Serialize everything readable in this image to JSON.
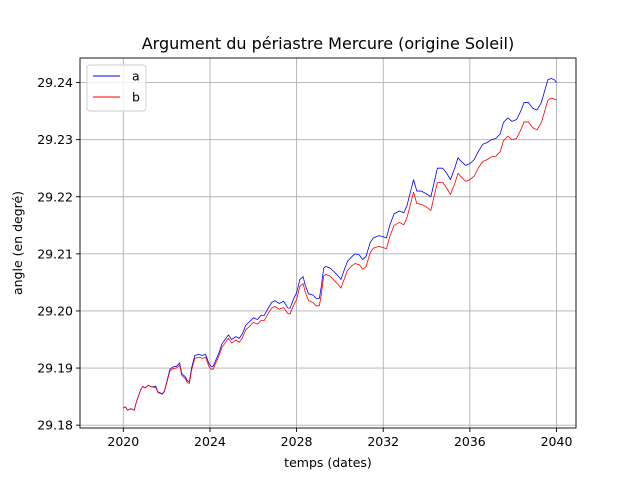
{
  "chart_data": {
    "type": "line",
    "title": "Argument du périastre Mercure (origine Soleil)",
    "xlabel": "temps (dates)",
    "ylabel": "angle (en degré)",
    "xlim": [
      2018.0,
      2040.9
    ],
    "ylim": [
      29.1795,
      29.2443
    ],
    "xticks": [
      2020,
      2024,
      2028,
      2032,
      2036,
      2040
    ],
    "yticks": [
      29.18,
      29.19,
      29.2,
      29.21,
      29.22,
      29.23,
      29.24
    ],
    "ytick_labels": [
      "29.18",
      "29.19",
      "29.20",
      "29.21",
      "29.22",
      "29.23",
      "29.24"
    ],
    "grid": true,
    "legend_position": "top-left",
    "series": [
      {
        "name": "a",
        "color": "#0000ff",
        "points": [
          [
            2020.0,
            29.183
          ],
          [
            2020.1,
            29.1832
          ],
          [
            2020.2,
            29.1826
          ],
          [
            2020.35,
            29.1829
          ],
          [
            2020.5,
            29.1826
          ],
          [
            2020.6,
            29.184
          ],
          [
            2020.8,
            29.1862
          ],
          [
            2020.9,
            29.1868
          ],
          [
            2021.0,
            29.1865
          ],
          [
            2021.15,
            29.187
          ],
          [
            2021.3,
            29.1867
          ],
          [
            2021.5,
            29.1868
          ],
          [
            2021.6,
            29.1858
          ],
          [
            2021.8,
            29.1855
          ],
          [
            2021.9,
            29.186
          ],
          [
            2022.0,
            29.1875
          ],
          [
            2022.15,
            29.1898
          ],
          [
            2022.3,
            29.1902
          ],
          [
            2022.45,
            29.1903
          ],
          [
            2022.6,
            29.1909
          ],
          [
            2022.7,
            29.189
          ],
          [
            2022.85,
            29.1885
          ],
          [
            2022.95,
            29.1878
          ],
          [
            2023.05,
            29.1876
          ],
          [
            2023.15,
            29.19
          ],
          [
            2023.3,
            29.1922
          ],
          [
            2023.5,
            29.1924
          ],
          [
            2023.65,
            29.1922
          ],
          [
            2023.8,
            29.1924
          ],
          [
            2023.95,
            29.1908
          ],
          [
            2024.05,
            29.1903
          ],
          [
            2024.15,
            29.1903
          ],
          [
            2024.25,
            29.1912
          ],
          [
            2024.4,
            29.1925
          ],
          [
            2024.55,
            29.1942
          ],
          [
            2024.7,
            29.195
          ],
          [
            2024.85,
            29.1958
          ],
          [
            2025.0,
            29.195
          ],
          [
            2025.2,
            29.1955
          ],
          [
            2025.35,
            29.1952
          ],
          [
            2025.5,
            29.196
          ],
          [
            2025.65,
            29.1975
          ],
          [
            2025.8,
            29.198
          ],
          [
            2026.0,
            29.1988
          ],
          [
            2026.2,
            29.1985
          ],
          [
            2026.35,
            29.1992
          ],
          [
            2026.5,
            29.1992
          ],
          [
            2026.65,
            29.2002
          ],
          [
            2026.85,
            29.2015
          ],
          [
            2027.0,
            29.2018
          ],
          [
            2027.2,
            29.2013
          ],
          [
            2027.4,
            29.2017
          ],
          [
            2027.6,
            29.2005
          ],
          [
            2027.7,
            29.2005
          ],
          [
            2027.85,
            29.202
          ],
          [
            2028.0,
            29.2032
          ],
          [
            2028.15,
            29.2055
          ],
          [
            2028.3,
            29.206
          ],
          [
            2028.4,
            29.2045
          ],
          [
            2028.55,
            29.203
          ],
          [
            2028.75,
            29.2028
          ],
          [
            2028.9,
            29.2022
          ],
          [
            2029.05,
            29.2022
          ],
          [
            2029.15,
            29.2045
          ],
          [
            2029.25,
            29.2075
          ],
          [
            2029.35,
            29.2078
          ],
          [
            2029.55,
            29.2075
          ],
          [
            2029.75,
            29.2068
          ],
          [
            2029.95,
            29.206
          ],
          [
            2030.05,
            29.2055
          ],
          [
            2030.2,
            29.2072
          ],
          [
            2030.35,
            29.2087
          ],
          [
            2030.55,
            29.2095
          ],
          [
            2030.7,
            29.21
          ],
          [
            2030.9,
            29.2098
          ],
          [
            2031.05,
            29.209
          ],
          [
            2031.2,
            29.2095
          ],
          [
            2031.4,
            29.212
          ],
          [
            2031.55,
            29.2128
          ],
          [
            2031.8,
            29.2132
          ],
          [
            2032.0,
            29.213
          ],
          [
            2032.15,
            29.2128
          ],
          [
            2032.3,
            29.215
          ],
          [
            2032.5,
            29.217
          ],
          [
            2032.75,
            29.2175
          ],
          [
            2032.95,
            29.2172
          ],
          [
            2033.1,
            29.2185
          ],
          [
            2033.3,
            29.2215
          ],
          [
            2033.4,
            29.223
          ],
          [
            2033.55,
            29.221
          ],
          [
            2033.75,
            29.221
          ],
          [
            2034.0,
            29.2205
          ],
          [
            2034.2,
            29.22
          ],
          [
            2034.35,
            29.2225
          ],
          [
            2034.5,
            29.225
          ],
          [
            2034.75,
            29.225
          ],
          [
            2034.95,
            29.224
          ],
          [
            2035.1,
            29.223
          ],
          [
            2035.3,
            29.225
          ],
          [
            2035.45,
            29.2268
          ],
          [
            2035.6,
            29.2262
          ],
          [
            2035.8,
            29.2255
          ],
          [
            2036.0,
            29.2258
          ],
          [
            2036.2,
            29.2265
          ],
          [
            2036.4,
            29.228
          ],
          [
            2036.6,
            29.2292
          ],
          [
            2036.8,
            29.2295
          ],
          [
            2037.0,
            29.23
          ],
          [
            2037.2,
            29.2302
          ],
          [
            2037.4,
            29.231
          ],
          [
            2037.55,
            29.233
          ],
          [
            2037.75,
            29.2338
          ],
          [
            2037.95,
            29.2332
          ],
          [
            2038.15,
            29.2335
          ],
          [
            2038.35,
            29.235
          ],
          [
            2038.5,
            29.2365
          ],
          [
            2038.7,
            29.2365
          ],
          [
            2038.9,
            29.2355
          ],
          [
            2039.1,
            29.2352
          ],
          [
            2039.3,
            29.2365
          ],
          [
            2039.45,
            29.2385
          ],
          [
            2039.6,
            29.2405
          ],
          [
            2039.75,
            29.2407
          ],
          [
            2039.9,
            29.2405
          ],
          [
            2040.0,
            29.24
          ]
        ]
      },
      {
        "name": "b",
        "color": "#ff0000",
        "points": [
          [
            2020.0,
            29.183
          ],
          [
            2020.1,
            29.1832
          ],
          [
            2020.2,
            29.1826
          ],
          [
            2020.35,
            29.1829
          ],
          [
            2020.5,
            29.1826
          ],
          [
            2020.6,
            29.184
          ],
          [
            2020.8,
            29.1862
          ],
          [
            2020.9,
            29.1868
          ],
          [
            2021.0,
            29.1865
          ],
          [
            2021.15,
            29.187
          ],
          [
            2021.3,
            29.1867
          ],
          [
            2021.5,
            29.1866
          ],
          [
            2021.6,
            29.1857
          ],
          [
            2021.8,
            29.1854
          ],
          [
            2021.9,
            29.1859
          ],
          [
            2022.0,
            29.1873
          ],
          [
            2022.15,
            29.1895
          ],
          [
            2022.3,
            29.1899
          ],
          [
            2022.45,
            29.19
          ],
          [
            2022.6,
            29.1905
          ],
          [
            2022.7,
            29.1887
          ],
          [
            2022.85,
            29.1882
          ],
          [
            2022.95,
            29.1875
          ],
          [
            2023.05,
            29.1873
          ],
          [
            2023.15,
            29.1896
          ],
          [
            2023.3,
            29.1917
          ],
          [
            2023.5,
            29.1919
          ],
          [
            2023.65,
            29.1917
          ],
          [
            2023.8,
            29.1919
          ],
          [
            2023.95,
            29.1903
          ],
          [
            2024.05,
            29.1898
          ],
          [
            2024.15,
            29.1898
          ],
          [
            2024.25,
            29.1907
          ],
          [
            2024.4,
            29.192
          ],
          [
            2024.55,
            29.1936
          ],
          [
            2024.7,
            29.1944
          ],
          [
            2024.85,
            29.1952
          ],
          [
            2025.0,
            29.1944
          ],
          [
            2025.2,
            29.1949
          ],
          [
            2025.35,
            29.1945
          ],
          [
            2025.5,
            29.1953
          ],
          [
            2025.65,
            29.1967
          ],
          [
            2025.8,
            29.1972
          ],
          [
            2026.0,
            29.198
          ],
          [
            2026.2,
            29.1977
          ],
          [
            2026.35,
            29.1983
          ],
          [
            2026.5,
            29.1983
          ],
          [
            2026.65,
            29.1993
          ],
          [
            2026.85,
            29.2005
          ],
          [
            2027.0,
            29.2008
          ],
          [
            2027.2,
            29.2003
          ],
          [
            2027.4,
            29.2006
          ],
          [
            2027.6,
            29.1995
          ],
          [
            2027.7,
            29.1995
          ],
          [
            2027.85,
            29.2009
          ],
          [
            2028.0,
            29.202
          ],
          [
            2028.15,
            29.2043
          ],
          [
            2028.3,
            29.2048
          ],
          [
            2028.4,
            29.2033
          ],
          [
            2028.55,
            29.2018
          ],
          [
            2028.75,
            29.2015
          ],
          [
            2028.9,
            29.2009
          ],
          [
            2029.05,
            29.2009
          ],
          [
            2029.15,
            29.2031
          ],
          [
            2029.25,
            29.2061
          ],
          [
            2029.35,
            29.2064
          ],
          [
            2029.55,
            29.2061
          ],
          [
            2029.75,
            29.2053
          ],
          [
            2029.95,
            29.2045
          ],
          [
            2030.05,
            29.204
          ],
          [
            2030.2,
            29.2056
          ],
          [
            2030.35,
            29.2071
          ],
          [
            2030.55,
            29.2079
          ],
          [
            2030.7,
            29.2083
          ],
          [
            2030.9,
            29.2081
          ],
          [
            2031.05,
            29.2073
          ],
          [
            2031.2,
            29.2077
          ],
          [
            2031.4,
            29.2102
          ],
          [
            2031.55,
            29.211
          ],
          [
            2031.8,
            29.2113
          ],
          [
            2032.0,
            29.2111
          ],
          [
            2032.15,
            29.2109
          ],
          [
            2032.3,
            29.213
          ],
          [
            2032.5,
            29.215
          ],
          [
            2032.75,
            29.2155
          ],
          [
            2032.95,
            29.2151
          ],
          [
            2033.1,
            29.2164
          ],
          [
            2033.3,
            29.2193
          ],
          [
            2033.4,
            29.2208
          ],
          [
            2033.55,
            29.2188
          ],
          [
            2033.75,
            29.2187
          ],
          [
            2034.0,
            29.2182
          ],
          [
            2034.2,
            29.2176
          ],
          [
            2034.35,
            29.2201
          ],
          [
            2034.5,
            29.2225
          ],
          [
            2034.75,
            29.2225
          ],
          [
            2034.95,
            29.2214
          ],
          [
            2035.1,
            29.2204
          ],
          [
            2035.3,
            29.2223
          ],
          [
            2035.45,
            29.2241
          ],
          [
            2035.6,
            29.2235
          ],
          [
            2035.8,
            29.2227
          ],
          [
            2036.0,
            29.223
          ],
          [
            2036.2,
            29.2236
          ],
          [
            2036.4,
            29.2251
          ],
          [
            2036.6,
            29.2262
          ],
          [
            2036.8,
            29.2265
          ],
          [
            2037.0,
            29.227
          ],
          [
            2037.2,
            29.2271
          ],
          [
            2037.4,
            29.2279
          ],
          [
            2037.55,
            29.2298
          ],
          [
            2037.75,
            29.2306
          ],
          [
            2037.95,
            29.23
          ],
          [
            2038.15,
            29.2302
          ],
          [
            2038.35,
            29.2317
          ],
          [
            2038.5,
            29.2331
          ],
          [
            2038.7,
            29.2331
          ],
          [
            2038.9,
            29.2321
          ],
          [
            2039.1,
            29.2317
          ],
          [
            2039.3,
            29.233
          ],
          [
            2039.45,
            29.2349
          ],
          [
            2039.6,
            29.2369
          ],
          [
            2039.75,
            29.2373
          ],
          [
            2039.9,
            29.2371
          ],
          [
            2040.0,
            29.237
          ]
        ]
      }
    ]
  }
}
